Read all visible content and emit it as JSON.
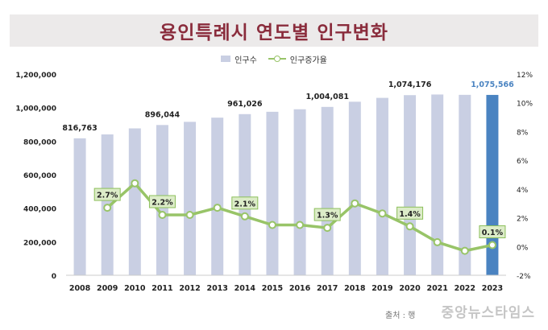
{
  "page": {
    "title": "용인특례시 연도별 인구변화",
    "source_label": "출처 : 행",
    "watermark": "중앙뉴스타임스"
  },
  "colors": {
    "bar": "#c9cfe3",
    "bar_highlight": "#4a83c1",
    "line": "#98c468",
    "label_bg": "#dcecc8",
    "title": "#8a2c3c"
  },
  "chart_data": {
    "type": "bar",
    "title": "용인특례시 연도별 인구변화",
    "legend": [
      "인구수",
      "인구증가율"
    ],
    "legend_position": "top",
    "grid": false,
    "categories": [
      "2008",
      "2009",
      "2010",
      "2011",
      "2012",
      "2013",
      "2014",
      "2015",
      "2016",
      "2017",
      "2018",
      "2019",
      "2020",
      "2021",
      "2022",
      "2023"
    ],
    "series": [
      {
        "name": "인구수",
        "type": "bar",
        "axis": "left",
        "values": [
          816763,
          840000,
          876000,
          896044,
          915000,
          940000,
          961026,
          975000,
          990000,
          1004081,
          1035000,
          1058000,
          1074176,
          1078000,
          1076000,
          1075566
        ],
        "highlight_index": 15
      },
      {
        "name": "인구증가율",
        "type": "line",
        "axis": "right",
        "values": [
          null,
          2.7,
          4.4,
          2.2,
          2.2,
          2.7,
          2.1,
          1.5,
          1.5,
          1.3,
          3.0,
          2.3,
          1.4,
          0.3,
          -0.3,
          0.1
        ]
      }
    ],
    "bar_value_labels": [
      {
        "index": 0,
        "text": "816,763"
      },
      {
        "index": 3,
        "text": "896,044"
      },
      {
        "index": 6,
        "text": "961,026"
      },
      {
        "index": 9,
        "text": "1,004,081"
      },
      {
        "index": 12,
        "text": "1,074,176"
      },
      {
        "index": 15,
        "text": "1,075,566"
      }
    ],
    "rate_value_labels": [
      {
        "index": 1,
        "text": "2.7%"
      },
      {
        "index": 3,
        "text": "2.2%"
      },
      {
        "index": 6,
        "text": "2.1%"
      },
      {
        "index": 9,
        "text": "1.3%"
      },
      {
        "index": 12,
        "text": "1.4%"
      },
      {
        "index": 15,
        "text": "0.1%"
      }
    ],
    "y_left": {
      "ylim": [
        0,
        1200000
      ],
      "ticks": [
        0,
        200000,
        400000,
        600000,
        800000,
        1000000,
        1200000
      ],
      "tick_labels": [
        "0",
        "200,000",
        "400,000",
        "600,000",
        "800,000",
        "1,000,000",
        "1,200,000"
      ]
    },
    "y_right": {
      "ylim": [
        -2,
        12
      ],
      "ticks": [
        -2,
        0,
        2,
        4,
        6,
        8,
        10,
        12
      ],
      "tick_labels": [
        "-2%",
        "0%",
        "2%",
        "4%",
        "6%",
        "8%",
        "10%",
        "12%"
      ]
    }
  }
}
